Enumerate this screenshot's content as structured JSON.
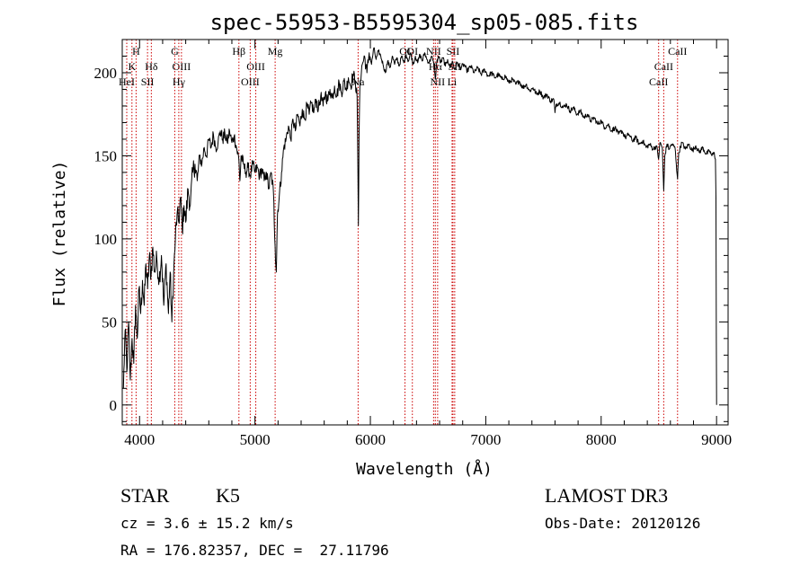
{
  "chart_data": {
    "type": "line",
    "title": "spec-55953-B5595304_sp05-085.fits",
    "xlabel": "Wavelength (Å)",
    "ylabel": "Flux (relative)",
    "xlim": [
      3850,
      9100
    ],
    "ylim": [
      -12,
      220
    ],
    "x_ticks": [
      4000,
      5000,
      6000,
      7000,
      8000,
      9000
    ],
    "y_ticks": [
      0,
      50,
      100,
      150,
      200
    ],
    "x_minor_step": 200,
    "y_minor_step": 10,
    "series": [
      {
        "name": "spectrum",
        "color": "#000000",
        "points": [
          [
            3860,
            10
          ],
          [
            3875,
            45
          ],
          [
            3890,
            20
          ],
          [
            3905,
            50
          ],
          [
            3920,
            15
          ],
          [
            3935,
            40
          ],
          [
            3950,
            25
          ],
          [
            3965,
            60
          ],
          [
            3980,
            40
          ],
          [
            3995,
            70
          ],
          [
            4010,
            55
          ],
          [
            4025,
            75
          ],
          [
            4040,
            60
          ],
          [
            4055,
            85
          ],
          [
            4070,
            70
          ],
          [
            4085,
            90
          ],
          [
            4100,
            78
          ],
          [
            4115,
            95
          ],
          [
            4130,
            80
          ],
          [
            4150,
            88
          ],
          [
            4170,
            75
          ],
          [
            4190,
            90
          ],
          [
            4210,
            60
          ],
          [
            4230,
            85
          ],
          [
            4250,
            55
          ],
          [
            4265,
            80
          ],
          [
            4280,
            50
          ],
          [
            4295,
            78
          ],
          [
            4310,
            100
          ],
          [
            4325,
            115
          ],
          [
            4340,
            110
          ],
          [
            4355,
            125
          ],
          [
            4370,
            105
          ],
          [
            4385,
            120
          ],
          [
            4400,
            110
          ],
          [
            4420,
            130
          ],
          [
            4440,
            120
          ],
          [
            4460,
            140
          ],
          [
            4480,
            145
          ],
          [
            4500,
            135
          ],
          [
            4520,
            150
          ],
          [
            4540,
            145
          ],
          [
            4560,
            155
          ],
          [
            4580,
            150
          ],
          [
            4600,
            160
          ],
          [
            4620,
            155
          ],
          [
            4640,
            163
          ],
          [
            4660,
            155
          ],
          [
            4680,
            158
          ],
          [
            4700,
            165
          ],
          [
            4720,
            160
          ],
          [
            4740,
            163
          ],
          [
            4760,
            158
          ],
          [
            4780,
            165
          ],
          [
            4800,
            158
          ],
          [
            4820,
            162
          ],
          [
            4840,
            155
          ],
          [
            4860,
            148
          ],
          [
            4870,
            135
          ],
          [
            4880,
            150
          ],
          [
            4900,
            145
          ],
          [
            4920,
            140
          ],
          [
            4940,
            143
          ],
          [
            4960,
            138
          ],
          [
            4980,
            145
          ],
          [
            5000,
            140
          ],
          [
            5020,
            143
          ],
          [
            5040,
            138
          ],
          [
            5060,
            142
          ],
          [
            5080,
            135
          ],
          [
            5100,
            140
          ],
          [
            5120,
            130
          ],
          [
            5140,
            140
          ],
          [
            5160,
            128
          ],
          [
            5175,
            95
          ],
          [
            5185,
            80
          ],
          [
            5195,
            115
          ],
          [
            5210,
            125
          ],
          [
            5230,
            140
          ],
          [
            5250,
            155
          ],
          [
            5270,
            160
          ],
          [
            5290,
            168
          ],
          [
            5310,
            160
          ],
          [
            5330,
            172
          ],
          [
            5350,
            165
          ],
          [
            5370,
            175
          ],
          [
            5390,
            168
          ],
          [
            5410,
            178
          ],
          [
            5430,
            172
          ],
          [
            5450,
            180
          ],
          [
            5470,
            175
          ],
          [
            5490,
            182
          ],
          [
            5510,
            176
          ],
          [
            5530,
            184
          ],
          [
            5550,
            178
          ],
          [
            5570,
            186
          ],
          [
            5590,
            180
          ],
          [
            5610,
            188
          ],
          [
            5630,
            183
          ],
          [
            5650,
            190
          ],
          [
            5670,
            185
          ],
          [
            5690,
            192
          ],
          [
            5710,
            186
          ],
          [
            5730,
            194
          ],
          [
            5750,
            188
          ],
          [
            5770,
            195
          ],
          [
            5790,
            190
          ],
          [
            5810,
            197
          ],
          [
            5830,
            192
          ],
          [
            5850,
            199
          ],
          [
            5870,
            195
          ],
          [
            5885,
            185
          ],
          [
            5892,
            140
          ],
          [
            5896,
            108
          ],
          [
            5902,
            160
          ],
          [
            5910,
            195
          ],
          [
            5930,
            205
          ],
          [
            5950,
            210
          ],
          [
            5970,
            200
          ],
          [
            5990,
            212
          ],
          [
            6010,
            205
          ],
          [
            6030,
            215
          ],
          [
            6050,
            208
          ],
          [
            6070,
            213
          ],
          [
            6090,
            210
          ],
          [
            6110,
            205
          ],
          [
            6130,
            200
          ],
          [
            6150,
            207
          ],
          [
            6170,
            203
          ],
          [
            6190,
            210
          ],
          [
            6210,
            205
          ],
          [
            6230,
            209
          ],
          [
            6250,
            204
          ],
          [
            6270,
            210
          ],
          [
            6290,
            206
          ],
          [
            6310,
            211
          ],
          [
            6330,
            207
          ],
          [
            6350,
            212
          ],
          [
            6370,
            205
          ],
          [
            6390,
            210
          ],
          [
            6410,
            206
          ],
          [
            6430,
            211
          ],
          [
            6450,
            207
          ],
          [
            6470,
            212
          ],
          [
            6490,
            208
          ],
          [
            6510,
            206
          ],
          [
            6530,
            210
          ],
          [
            6550,
            205
          ],
          [
            6563,
            196
          ],
          [
            6575,
            206
          ],
          [
            6590,
            210
          ],
          [
            6610,
            206
          ],
          [
            6630,
            209
          ],
          [
            6650,
            204
          ],
          [
            6670,
            208
          ],
          [
            6690,
            203
          ],
          [
            6710,
            207
          ],
          [
            6730,
            202
          ],
          [
            6750,
            206
          ],
          [
            6780,
            203
          ],
          [
            6810,
            205
          ],
          [
            6840,
            201
          ],
          [
            6870,
            204
          ],
          [
            6900,
            200
          ],
          [
            6930,
            203
          ],
          [
            6960,
            199
          ],
          [
            6990,
            202
          ],
          [
            7020,
            198
          ],
          [
            7050,
            200
          ],
          [
            7080,
            197
          ],
          [
            7110,
            199
          ],
          [
            7140,
            196
          ],
          [
            7170,
            198
          ],
          [
            7200,
            194
          ],
          [
            7230,
            196
          ],
          [
            7260,
            193
          ],
          [
            7290,
            195
          ],
          [
            7320,
            191
          ],
          [
            7350,
            193
          ],
          [
            7380,
            189
          ],
          [
            7410,
            191
          ],
          [
            7440,
            187
          ],
          [
            7470,
            189
          ],
          [
            7500,
            185
          ],
          [
            7530,
            187
          ],
          [
            7560,
            183
          ],
          [
            7590,
            184
          ],
          [
            7600,
            176
          ],
          [
            7610,
            181
          ],
          [
            7640,
            182
          ],
          [
            7670,
            179
          ],
          [
            7700,
            181
          ],
          [
            7730,
            177
          ],
          [
            7760,
            179
          ],
          [
            7790,
            175
          ],
          [
            7820,
            177
          ],
          [
            7850,
            173
          ],
          [
            7880,
            175
          ],
          [
            7910,
            171
          ],
          [
            7940,
            173
          ],
          [
            7970,
            169
          ],
          [
            8000,
            171
          ],
          [
            8030,
            167
          ],
          [
            8060,
            169
          ],
          [
            8090,
            165
          ],
          [
            8120,
            167
          ],
          [
            8150,
            163
          ],
          [
            8180,
            165
          ],
          [
            8210,
            161
          ],
          [
            8240,
            163
          ],
          [
            8270,
            159
          ],
          [
            8300,
            161
          ],
          [
            8330,
            157
          ],
          [
            8360,
            159
          ],
          [
            8390,
            155
          ],
          [
            8420,
            157
          ],
          [
            8450,
            154
          ],
          [
            8480,
            156
          ],
          [
            8498,
            148
          ],
          [
            8510,
            158
          ],
          [
            8530,
            155
          ],
          [
            8542,
            129
          ],
          [
            8552,
            150
          ],
          [
            8570,
            157
          ],
          [
            8590,
            154
          ],
          [
            8610,
            157
          ],
          [
            8640,
            155
          ],
          [
            8662,
            136
          ],
          [
            8672,
            152
          ],
          [
            8700,
            158
          ],
          [
            8730,
            154
          ],
          [
            8760,
            157
          ],
          [
            8790,
            153
          ],
          [
            8820,
            156
          ],
          [
            8850,
            152
          ],
          [
            8880,
            155
          ],
          [
            8910,
            151
          ],
          [
            8940,
            153
          ],
          [
            8960,
            150
          ],
          [
            8980,
            152
          ],
          [
            8990,
            148
          ],
          [
            8995,
            125
          ],
          [
            8998,
            40
          ],
          [
            9000,
            0
          ]
        ]
      }
    ],
    "line_markers": [
      {
        "label": "H",
        "x": 3970,
        "row": 0
      },
      {
        "label": "K",
        "x": 3934,
        "row": 1
      },
      {
        "label": "HeI",
        "x": 3889,
        "row": 2
      },
      {
        "label": "SII",
        "x": 4069,
        "row": 2
      },
      {
        "label": "Hδ",
        "x": 4102,
        "row": 1
      },
      {
        "label": "G",
        "x": 4305,
        "row": 0
      },
      {
        "label": "OIII",
        "x": 4363,
        "row": 1
      },
      {
        "label": "Hγ",
        "x": 4340,
        "row": 2
      },
      {
        "label": "Hβ",
        "x": 4861,
        "row": 0
      },
      {
        "label": "OIII",
        "x": 4959,
        "row": 2
      },
      {
        "label": "OIII",
        "x": 5007,
        "row": 1
      },
      {
        "label": "Mg",
        "x": 5175,
        "row": 0
      },
      {
        "label": "Na",
        "x": 5894,
        "row": 2
      },
      {
        "label": "OI",
        "x": 6300,
        "row": 0
      },
      {
        "label": "OI",
        "x": 6364,
        "row": 0
      },
      {
        "label": "NII",
        "x": 6548,
        "row": 0
      },
      {
        "label": "Hα",
        "x": 6563,
        "row": 1
      },
      {
        "label": "NII",
        "x": 6583,
        "row": 2
      },
      {
        "label": "SII",
        "x": 6716,
        "row": 0
      },
      {
        "label": "SII",
        "x": 6731,
        "row": 1
      },
      {
        "label": "Li",
        "x": 6708,
        "row": 2
      },
      {
        "label": "CaII",
        "x": 8498,
        "row": 2
      },
      {
        "label": "CaII",
        "x": 8542,
        "row": 1
      },
      {
        "label": "CaII",
        "x": 8662,
        "row": 0
      }
    ],
    "marker_color": "#cc0000"
  },
  "info": {
    "class": "STAR",
    "subclass": "K5",
    "cz": "cz = 3.6 ± 15.2 km/s",
    "coords": "RA = 176.82357, DEC =  27.11796",
    "survey": "LAMOST DR3",
    "obs_date": "Obs-Date: 20120126"
  }
}
